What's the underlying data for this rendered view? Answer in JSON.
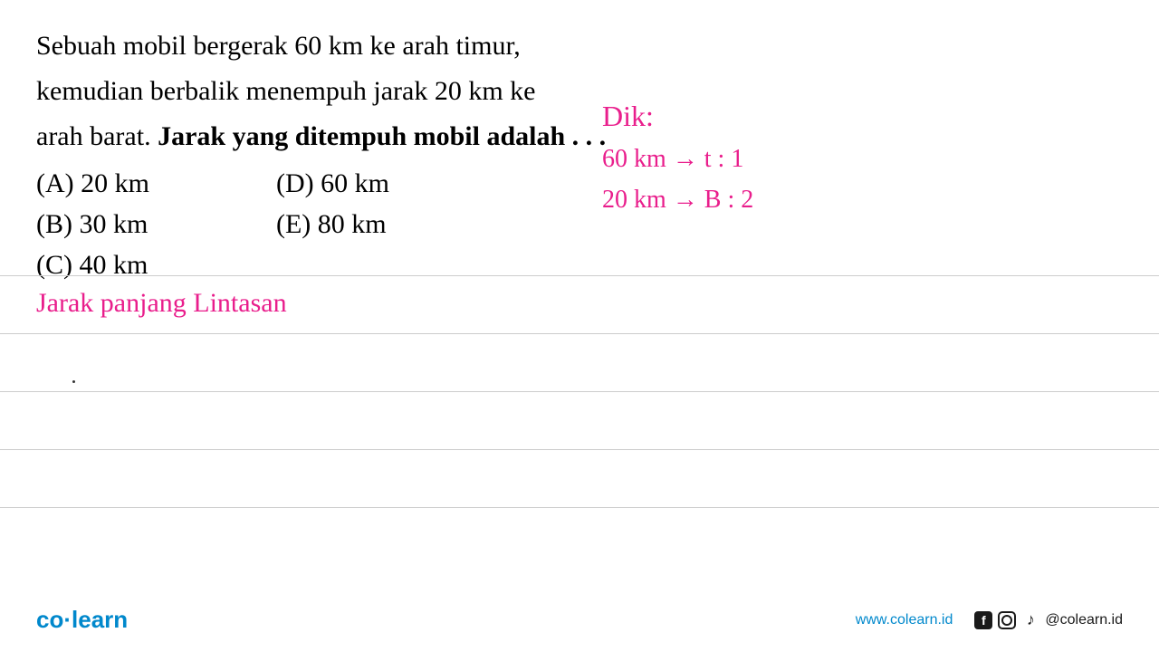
{
  "question": {
    "line1": "Sebuah mobil bergerak 60 km ke arah timur,",
    "line2": "kemudian berbalik menempuh jarak 20 km ke",
    "line3_plain": "arah barat. ",
    "line3_bold": "Jarak yang ditempuh mobil adalah . . ."
  },
  "options": {
    "a": "(A)  20 km",
    "b": "(B)  30 km",
    "c": "(C)  40 km",
    "d": "(D)  60 km",
    "e": "(E)  80 km"
  },
  "handwriting": {
    "dik": "Dik:",
    "line1": "60 km → t : 1",
    "line2": "20 km → B : 2",
    "jarak": "Jarak panjang Lintasan"
  },
  "footer": {
    "logo_part1": "co",
    "logo_dot": "·",
    "logo_part2": "learn",
    "website": "www.colearn.id",
    "handle": "@colearn.id",
    "fb_letter": "f"
  },
  "styling": {
    "bg_color": "#ffffff",
    "text_color": "#000000",
    "handwriting_color": "#e91e8c",
    "brand_color": "#0088cc",
    "line_color": "#cccccc",
    "question_fontsize": 30,
    "handwriting_fontsize": 30,
    "footer_fontsize": 16,
    "logo_fontsize": 26
  }
}
